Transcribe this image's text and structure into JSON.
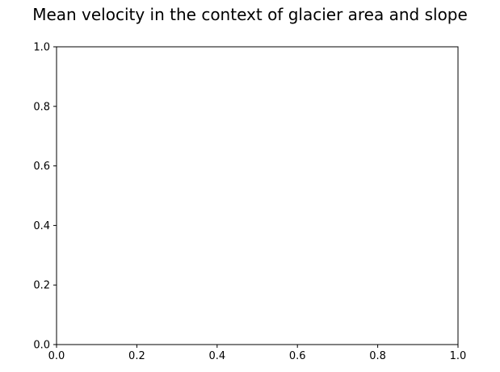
{
  "chart_data": {
    "type": "scatter",
    "title": "Mean velocity in the context of glacier area and slope",
    "xlabel": "",
    "ylabel": "",
    "xlim": [
      0.0,
      1.0
    ],
    "ylim": [
      0.0,
      1.0
    ],
    "x_ticks": [
      "0.0",
      "0.2",
      "0.4",
      "0.6",
      "0.8",
      "1.0"
    ],
    "y_ticks": [
      "0.0",
      "0.2",
      "0.4",
      "0.6",
      "0.8",
      "1.0"
    ],
    "series": [],
    "grid": false,
    "legend": "none"
  }
}
